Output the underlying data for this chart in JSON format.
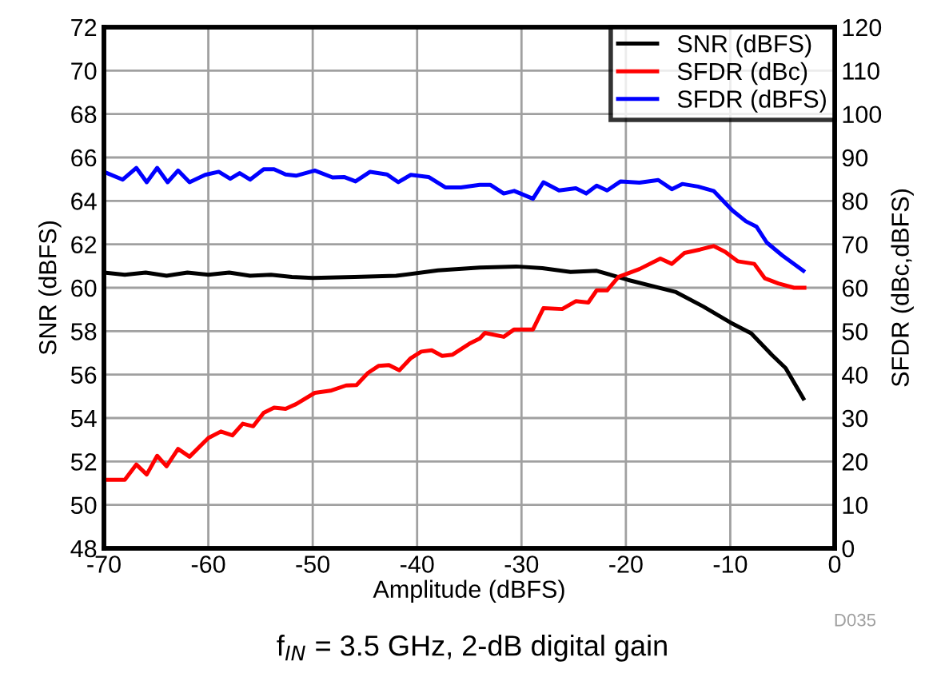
{
  "chart_data": {
    "type": "line",
    "xlabel": "Amplitude (dBFS)",
    "ylabel": "SNR (dBFS)",
    "y2label": "SFDR (dBc,dBFS)",
    "xlim": [
      -70,
      0
    ],
    "xticks": [
      -70,
      -60,
      -50,
      -40,
      -30,
      -20,
      -10,
      0
    ],
    "ylim": [
      48,
      72
    ],
    "yticks": [
      48,
      50,
      52,
      54,
      56,
      58,
      60,
      62,
      64,
      66,
      68,
      70,
      72
    ],
    "y2lim": [
      0,
      120
    ],
    "y2ticks": [
      0,
      10,
      20,
      30,
      40,
      50,
      60,
      70,
      80,
      90,
      100,
      110,
      120
    ],
    "grid": true,
    "legend": "top right",
    "marker": "none",
    "line_style": "solid",
    "annotations": [
      "f$_{IN}$ = 3.5 GHz, 2-dB digital gain",
      "D035"
    ],
    "series": [
      {
        "name": "SNR (dBFS)",
        "color": "#000000",
        "x": [
          -70,
          -68,
          -66,
          -64,
          -62,
          -60,
          -58,
          -56,
          -54,
          -52,
          -50,
          -46,
          -42,
          -38,
          -34,
          -30.5,
          -28,
          -25.3,
          -22.8,
          -19.8,
          -15.2,
          -12.6,
          -10,
          -8,
          -6,
          -4.7,
          -3
        ],
        "values": [
          60.7,
          60.6,
          60.7,
          60.55,
          60.7,
          60.6,
          60.7,
          60.55,
          60.6,
          60.5,
          60.45,
          60.5,
          60.55,
          60.8,
          60.93,
          60.98,
          60.9,
          60.73,
          60.78,
          60.36,
          59.8,
          59.14,
          58.4,
          57.9,
          56.9,
          56.3,
          54.9
        ]
      },
      {
        "name": "SFDR (dBc)",
        "color": "#ff0000",
        "axis": "y2",
        "x": [
          -69.7,
          -68,
          -66.9,
          -65.9,
          -64.9,
          -64,
          -62.9,
          -61.8,
          -60,
          -58.8,
          -57.7,
          -56.7,
          -55.7,
          -54.7,
          -53.7,
          -52.6,
          -51.6,
          -49.8,
          -48.3,
          -46.8,
          -45.8,
          -44.7,
          -43.7,
          -42.7,
          -41.7,
          -40.6,
          -39.6,
          -38.6,
          -37.6,
          -36.6,
          -35,
          -34,
          -33.5,
          -31.7,
          -30.7,
          -28.9,
          -27.9,
          -26.1,
          -24.8,
          -23.6,
          -22.8,
          -21.8,
          -20.7,
          -18.7,
          -16.7,
          -15.6,
          -14.4,
          -12.9,
          -11.6,
          -10.5,
          -9.3,
          -7.7,
          -6.7,
          -5.4,
          -3.9,
          -2.9
        ],
        "values": [
          15.8,
          15.8,
          19.3,
          17.0,
          21.3,
          18.9,
          22.9,
          21.1,
          25.4,
          26.9,
          26.0,
          28.7,
          28.1,
          31.2,
          32.4,
          32.1,
          33.2,
          35.8,
          36.3,
          37.5,
          37.6,
          40.4,
          42.0,
          42.2,
          41.0,
          43.8,
          45.3,
          45.6,
          44.3,
          44.6,
          47.1,
          48.3,
          49.6,
          48.7,
          50.4,
          50.4,
          55.3,
          55.1,
          56.9,
          56.6,
          59.4,
          59.4,
          62.5,
          64.3,
          66.7,
          65.5,
          68.0,
          68.8,
          69.6,
          68.3,
          66.1,
          65.5,
          62.2,
          61.0,
          60.0,
          60.0
        ]
      },
      {
        "name": "SFDR (dBFS)",
        "color": "#0000ff",
        "axis": "y2",
        "x": [
          -69.7,
          -68.2,
          -66.9,
          -65.9,
          -64.9,
          -63.9,
          -62.9,
          -61.8,
          -60.3,
          -59,
          -57.9,
          -57,
          -56,
          -54.7,
          -53.7,
          -52.6,
          -51.6,
          -49.8,
          -48.1,
          -47,
          -45.9,
          -44.5,
          -42.9,
          -41.8,
          -40.6,
          -38.9,
          -37.3,
          -35.8,
          -34,
          -33,
          -31.7,
          -30.7,
          -28.9,
          -27.9,
          -26.4,
          -24.8,
          -23.8,
          -22.8,
          -21.8,
          -20.5,
          -18.7,
          -16.9,
          -15.6,
          -14.6,
          -13.1,
          -11.6,
          -9.8,
          -8.5,
          -7.5,
          -6.5,
          -5,
          -3
        ],
        "values": [
          86.4,
          84.9,
          87.6,
          84.3,
          87.6,
          84.3,
          87.0,
          84.3,
          86.0,
          86.7,
          85.1,
          86.4,
          84.9,
          87.3,
          87.3,
          86.1,
          85.8,
          87.0,
          85.4,
          85.5,
          84.5,
          86.7,
          86.1,
          84.3,
          86.0,
          85.5,
          83.1,
          83.1,
          83.7,
          83.7,
          81.7,
          82.3,
          80.5,
          84.3,
          82.4,
          82.9,
          81.7,
          83.5,
          82.4,
          84.5,
          84.2,
          84.8,
          82.7,
          83.9,
          83.3,
          82.3,
          77.8,
          75.3,
          74.1,
          70.4,
          67.4,
          63.9
        ]
      }
    ]
  }
}
